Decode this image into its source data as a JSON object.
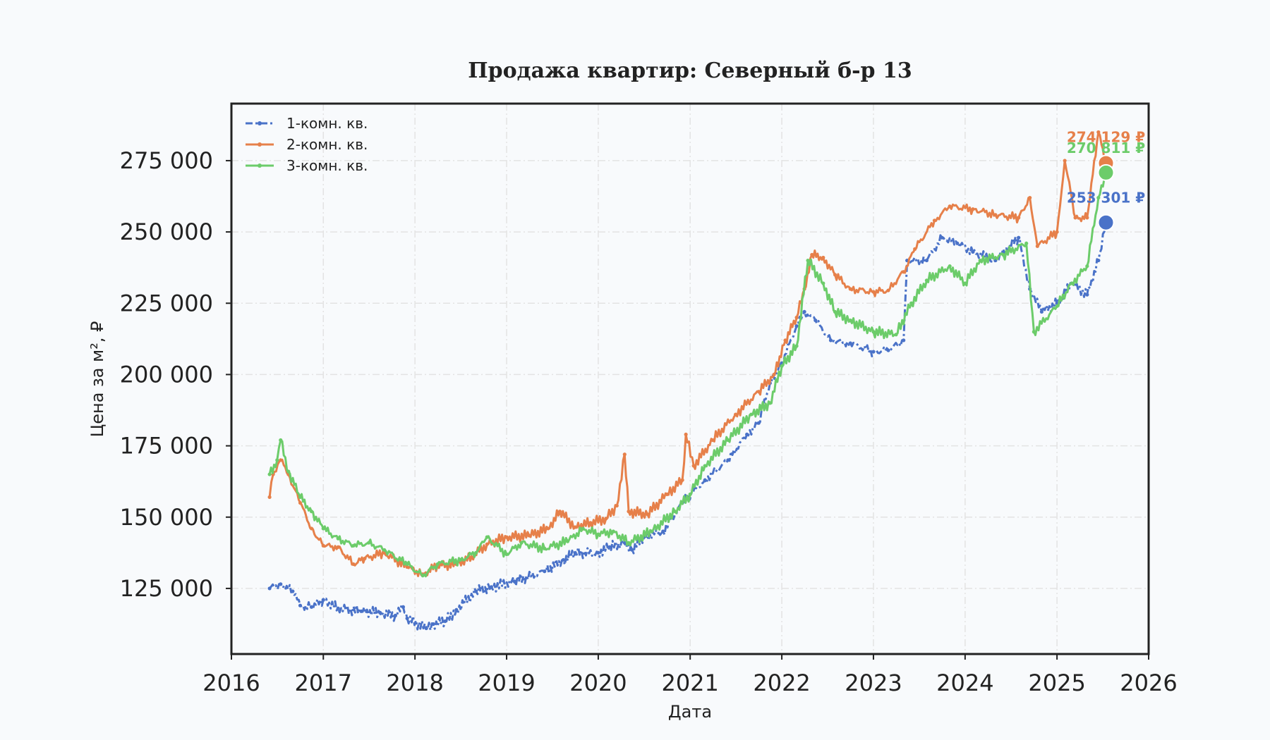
{
  "chart_data": {
    "type": "line",
    "title": "Продажа квартир: Северный б-р 13",
    "xlabel": "Дата",
    "ylabel": "Цена за м², ₽",
    "xlim": [
      "2016-01-01",
      "2026-01-01"
    ],
    "ylim": [
      102000,
      295000
    ],
    "x_ticks": [
      "2016",
      "2017",
      "2018",
      "2019",
      "2020",
      "2021",
      "2022",
      "2023",
      "2024",
      "2025",
      "2026"
    ],
    "y_ticks": [
      {
        "value": 125000,
        "label": "125 000"
      },
      {
        "value": 150000,
        "label": "150 000"
      },
      {
        "value": 175000,
        "label": "175 000"
      },
      {
        "value": 200000,
        "label": "200 000"
      },
      {
        "value": 225000,
        "label": "225 000"
      },
      {
        "value": 250000,
        "label": "250 000"
      },
      {
        "value": 275000,
        "label": "275 000"
      }
    ],
    "grid": true,
    "legend_position": "top-left",
    "series": [
      {
        "name": "1-комн. кв.",
        "color": "#4a72c8",
        "line_style": "dash-dot",
        "points": [
          [
            "2016-06-01",
            125000
          ],
          [
            "2016-07-15",
            126500
          ],
          [
            "2016-09-01",
            124000
          ],
          [
            "2016-10-01",
            119000
          ],
          [
            "2016-11-15",
            118500
          ],
          [
            "2017-01-01",
            121000
          ],
          [
            "2017-03-01",
            118000
          ],
          [
            "2017-06-01",
            117000
          ],
          [
            "2017-08-15",
            116500
          ],
          [
            "2017-10-15",
            115500
          ],
          [
            "2017-11-15",
            118500
          ],
          [
            "2017-12-01",
            114500
          ],
          [
            "2018-02-15",
            111000
          ],
          [
            "2018-03-15",
            112500
          ],
          [
            "2018-05-01",
            113500
          ],
          [
            "2018-06-15",
            117500
          ],
          [
            "2018-09-01",
            124000
          ],
          [
            "2018-11-01",
            125500
          ],
          [
            "2019-02-01",
            127500
          ],
          [
            "2019-06-01",
            131000
          ],
          [
            "2019-08-15",
            135000
          ],
          [
            "2019-10-01",
            137500
          ],
          [
            "2020-01-01",
            137500
          ],
          [
            "2020-02-15",
            139500
          ],
          [
            "2020-04-15",
            141000
          ],
          [
            "2020-05-15",
            138500
          ],
          [
            "2020-07-01",
            143000
          ],
          [
            "2020-09-15",
            145000
          ],
          [
            "2020-12-01",
            155000
          ],
          [
            "2021-03-01",
            163000
          ],
          [
            "2021-06-01",
            170000
          ],
          [
            "2021-08-15",
            179000
          ],
          [
            "2021-10-01",
            183000
          ],
          [
            "2021-11-15",
            197000
          ],
          [
            "2022-01-01",
            204000
          ],
          [
            "2022-03-01",
            217000
          ],
          [
            "2022-04-01",
            222000
          ],
          [
            "2022-05-15",
            219000
          ],
          [
            "2022-07-15",
            212000
          ],
          [
            "2022-10-01",
            211000
          ],
          [
            "2023-01-01",
            208000
          ],
          [
            "2023-03-01",
            208500
          ],
          [
            "2023-05-01",
            212000
          ],
          [
            "2023-05-15",
            240000
          ],
          [
            "2023-08-01",
            240000
          ],
          [
            "2023-10-01",
            248000
          ],
          [
            "2023-12-01",
            246000
          ],
          [
            "2024-02-01",
            243000
          ],
          [
            "2024-05-01",
            240000
          ],
          [
            "2024-08-01",
            248000
          ],
          [
            "2024-09-15",
            230000
          ],
          [
            "2024-11-01",
            222000
          ],
          [
            "2025-01-01",
            225000
          ],
          [
            "2025-03-01",
            232000
          ],
          [
            "2025-05-01",
            228000
          ],
          [
            "2025-06-15",
            240000
          ],
          [
            "2025-07-15",
            253301
          ]
        ]
      },
      {
        "name": "2-комн. кв.",
        "color": "#e6804a",
        "line_style": "solid",
        "points": [
          [
            "2016-06-01",
            157000
          ],
          [
            "2016-06-15",
            165000
          ],
          [
            "2016-07-15",
            170000
          ],
          [
            "2016-08-15",
            165000
          ],
          [
            "2016-10-01",
            155000
          ],
          [
            "2016-11-15",
            146000
          ],
          [
            "2017-01-01",
            140000
          ],
          [
            "2017-03-01",
            139500
          ],
          [
            "2017-05-01",
            133500
          ],
          [
            "2017-06-15",
            135500
          ],
          [
            "2017-09-01",
            137500
          ],
          [
            "2017-12-01",
            132500
          ],
          [
            "2018-02-01",
            130000
          ],
          [
            "2018-04-01",
            133000
          ],
          [
            "2018-06-15",
            133500
          ],
          [
            "2018-08-15",
            136000
          ],
          [
            "2018-10-15",
            140500
          ],
          [
            "2019-01-01",
            143000
          ],
          [
            "2019-04-01",
            143500
          ],
          [
            "2019-06-15",
            146000
          ],
          [
            "2019-08-01",
            152000
          ],
          [
            "2019-10-01",
            146500
          ],
          [
            "2019-12-01",
            148000
          ],
          [
            "2020-02-01",
            149500
          ],
          [
            "2020-03-15",
            154000
          ],
          [
            "2020-04-15",
            172000
          ],
          [
            "2020-05-01",
            152000
          ],
          [
            "2020-07-15",
            151000
          ],
          [
            "2020-10-01",
            158000
          ],
          [
            "2020-12-01",
            163000
          ],
          [
            "2020-12-15",
            179000
          ],
          [
            "2021-01-15",
            168000
          ],
          [
            "2021-04-01",
            177000
          ],
          [
            "2021-07-01",
            186000
          ],
          [
            "2021-10-01",
            194000
          ],
          [
            "2021-12-01",
            200000
          ],
          [
            "2022-01-15",
            212000
          ],
          [
            "2022-03-01",
            220000
          ],
          [
            "2022-04-01",
            230000
          ],
          [
            "2022-05-01",
            242000
          ],
          [
            "2022-06-15",
            241000
          ],
          [
            "2022-08-01",
            235000
          ],
          [
            "2022-10-01",
            230000
          ],
          [
            "2023-01-01",
            229000
          ],
          [
            "2023-03-01",
            229500
          ],
          [
            "2023-05-01",
            236000
          ],
          [
            "2023-06-15",
            244000
          ],
          [
            "2023-09-01",
            254000
          ],
          [
            "2023-11-01",
            259000
          ],
          [
            "2024-02-01",
            258000
          ],
          [
            "2024-05-01",
            256000
          ],
          [
            "2024-08-01",
            255000
          ],
          [
            "2024-09-15",
            262000
          ],
          [
            "2024-10-15",
            245000
          ],
          [
            "2025-01-01",
            250000
          ],
          [
            "2025-02-01",
            275000
          ],
          [
            "2025-03-15",
            255000
          ],
          [
            "2025-05-01",
            255000
          ],
          [
            "2025-06-15",
            285000
          ],
          [
            "2025-07-15",
            274129
          ]
        ]
      },
      {
        "name": "3-комн. кв.",
        "color": "#6ccc6a",
        "line_style": "solid",
        "points": [
          [
            "2016-06-01",
            165000
          ],
          [
            "2016-07-01",
            170000
          ],
          [
            "2016-07-15",
            177000
          ],
          [
            "2016-08-15",
            166000
          ],
          [
            "2016-10-01",
            157000
          ],
          [
            "2016-11-15",
            152000
          ],
          [
            "2017-01-01",
            146000
          ],
          [
            "2017-03-01",
            142500
          ],
          [
            "2017-05-01",
            140000
          ],
          [
            "2017-07-01",
            141000
          ],
          [
            "2017-09-01",
            138500
          ],
          [
            "2017-12-01",
            133500
          ],
          [
            "2018-02-01",
            129500
          ],
          [
            "2018-04-01",
            133500
          ],
          [
            "2018-07-01",
            135000
          ],
          [
            "2018-09-01",
            137500
          ],
          [
            "2018-10-15",
            143000
          ],
          [
            "2019-01-01",
            137000
          ],
          [
            "2019-03-01",
            141000
          ],
          [
            "2019-06-01",
            139000
          ],
          [
            "2019-09-01",
            141500
          ],
          [
            "2019-11-01",
            146000
          ],
          [
            "2020-01-01",
            144000
          ],
          [
            "2020-03-01",
            145000
          ],
          [
            "2020-05-01",
            141000
          ],
          [
            "2020-08-01",
            145000
          ],
          [
            "2020-11-01",
            152000
          ],
          [
            "2021-01-01",
            158000
          ],
          [
            "2021-03-01",
            168000
          ],
          [
            "2021-06-01",
            177000
          ],
          [
            "2021-09-01",
            186000
          ],
          [
            "2021-11-15",
            190000
          ],
          [
            "2022-01-01",
            203000
          ],
          [
            "2022-03-01",
            210000
          ],
          [
            "2022-04-15",
            240000
          ],
          [
            "2022-06-15",
            232000
          ],
          [
            "2022-08-01",
            222000
          ],
          [
            "2022-10-01",
            219000
          ],
          [
            "2023-01-01",
            215000
          ],
          [
            "2023-04-01",
            214000
          ],
          [
            "2023-06-01",
            225000
          ],
          [
            "2023-08-01",
            233000
          ],
          [
            "2023-11-01",
            238000
          ],
          [
            "2024-01-01",
            232000
          ],
          [
            "2024-03-01",
            240000
          ],
          [
            "2024-06-01",
            242000
          ],
          [
            "2024-09-01",
            246000
          ],
          [
            "2024-10-01",
            215000
          ],
          [
            "2025-01-01",
            224000
          ],
          [
            "2025-03-01",
            232000
          ],
          [
            "2025-05-01",
            238000
          ],
          [
            "2025-06-15",
            262000
          ],
          [
            "2025-07-15",
            270811
          ]
        ]
      }
    ],
    "end_markers": [
      {
        "series": "1-комн. кв.",
        "x": "2025-07-15",
        "value": 253301,
        "label": "253 301 ₽",
        "color": "#4a72c8"
      },
      {
        "series": "2-комн. кв.",
        "x": "2025-07-15",
        "value": 274129,
        "label": "274 129 ₽",
        "color": "#e6804a"
      },
      {
        "series": "3-комн. кв.",
        "x": "2025-07-15",
        "value": 270811,
        "label": "270 811 ₽",
        "color": "#6ccc6a"
      }
    ]
  }
}
